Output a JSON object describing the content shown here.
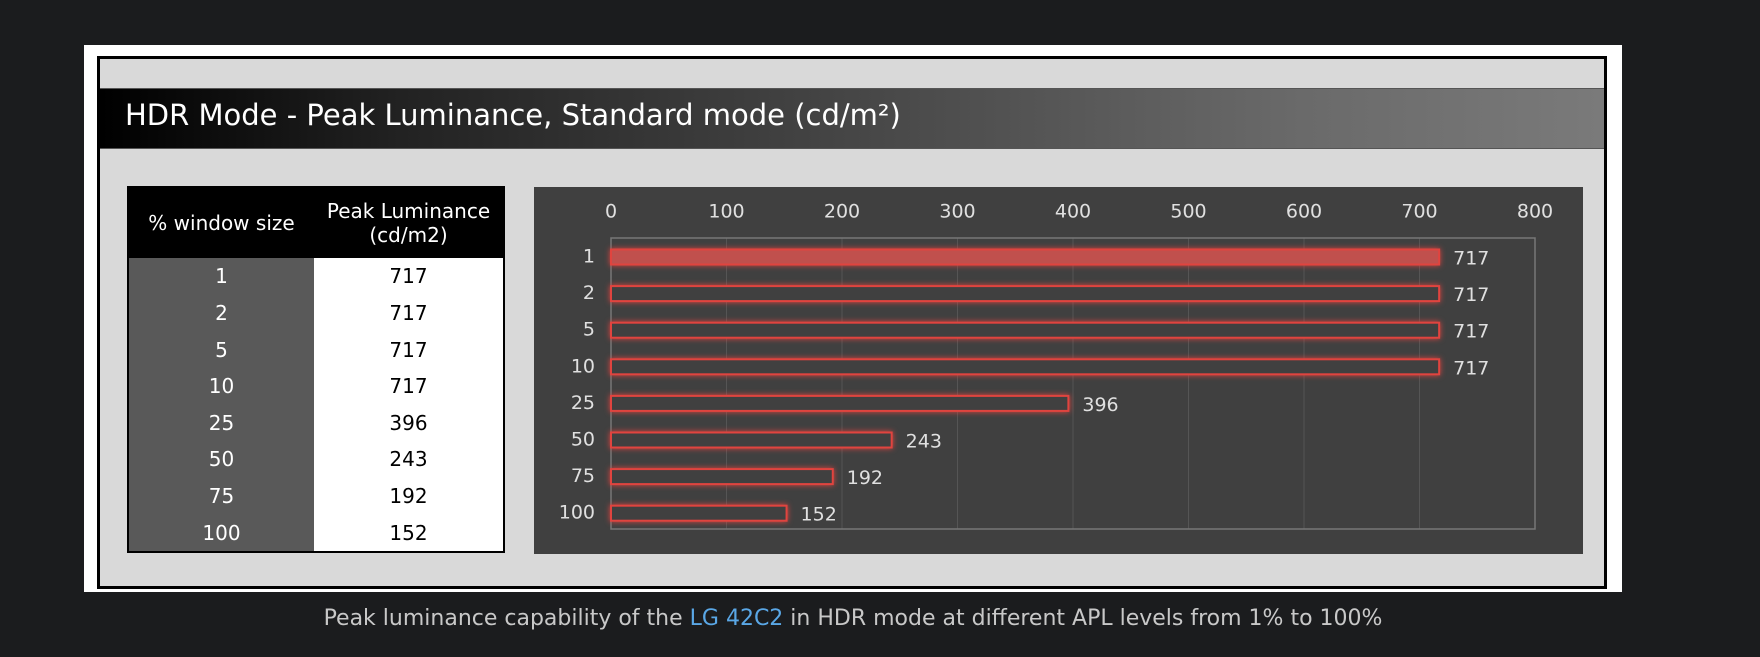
{
  "title": "HDR Mode - Peak Luminance, Standard mode (cd/m²)",
  "table": {
    "headers": [
      "% window size",
      "Peak Luminance",
      "(cd/m2)"
    ],
    "rows": [
      [
        "1",
        "717"
      ],
      [
        "2",
        "717"
      ],
      [
        "5",
        "717"
      ],
      [
        "10",
        "717"
      ],
      [
        "25",
        "396"
      ],
      [
        "50",
        "243"
      ],
      [
        "75",
        "192"
      ],
      [
        "100",
        "152"
      ]
    ]
  },
  "chart_data": {
    "type": "bar",
    "orientation": "horizontal",
    "categories": [
      "1",
      "2",
      "5",
      "10",
      "25",
      "50",
      "75",
      "100"
    ],
    "values": [
      717,
      717,
      717,
      717,
      396,
      243,
      192,
      152
    ],
    "color": "#e0443f",
    "fill_colors": [
      "#c0504d",
      "#404040",
      "#404040",
      "#404040",
      "#404040",
      "#404040",
      "#404040",
      "#404040"
    ],
    "xlim": [
      0,
      800
    ],
    "xticks": [
      0,
      100,
      200,
      300,
      400,
      500,
      600,
      700,
      800
    ],
    "grid": true
  },
  "caption": {
    "before": "Peak luminance capability of the ",
    "link": "LG 42C2",
    "after": " in HDR mode at different APL levels from 1% to 100%"
  }
}
